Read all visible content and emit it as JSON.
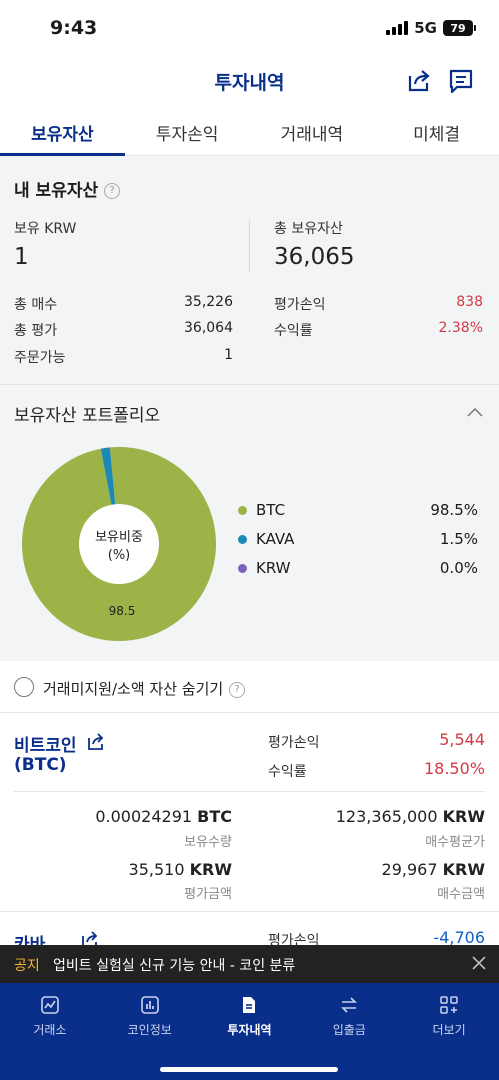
{
  "status": {
    "time": "9:43",
    "network": "5G",
    "battery": "79"
  },
  "header": {
    "title": "투자내역"
  },
  "tabs": [
    {
      "label": "보유자산"
    },
    {
      "label": "투자손익"
    },
    {
      "label": "거래내역"
    },
    {
      "label": "미체결"
    }
  ],
  "summary": {
    "title": "내 보유자산",
    "krw_label": "보유 KRW",
    "krw_value": "1",
    "total_label": "총 보유자산",
    "total_value": "36,065",
    "buy_label": "총 매수",
    "buy_value": "35,226",
    "eval_label": "총 평가",
    "eval_value": "36,064",
    "avail_label": "주문가능",
    "avail_value": "1",
    "pl_label": "평가손익",
    "pl_value": "838",
    "rate_label": "수익률",
    "rate_value": "2.38%"
  },
  "portfolio": {
    "title": "보유자산 포트폴리오",
    "center_line1": "보유비중",
    "center_line2": "(%)",
    "slice_label": "98.5"
  },
  "chart_data": {
    "type": "pie",
    "categories": [
      "BTC",
      "KAVA",
      "KRW"
    ],
    "values": [
      98.5,
      1.5,
      0.0
    ],
    "value_labels": [
      "98.5%",
      "1.5%",
      "0.0%"
    ],
    "colors": [
      "#9cb347",
      "#1b89b4",
      "#7b63b7"
    ],
    "title": "보유자산 포트폴리오"
  },
  "hide_small": {
    "label": "거래미지원/소액 자산 숨기기"
  },
  "coins": [
    {
      "name": "비트코인",
      "symbol": "(BTC)",
      "pl_label": "평가손익",
      "pl_value": "5,544",
      "rate_label": "수익률",
      "rate_value": "18.50%",
      "qty_value": "0.00024291",
      "qty_unit": "BTC",
      "qty_label": "보유수량",
      "avg_value": "123,365,000",
      "avg_unit": "KRW",
      "avg_label": "매수평균가",
      "eval_value": "35,510",
      "eval_unit": "KRW",
      "eval_label": "평가금액",
      "buy_value": "29,967",
      "buy_unit": "KRW",
      "buy_label": "매수금액"
    },
    {
      "name": "카바",
      "pl_label": "평가손익",
      "pl_value": "-4,706"
    }
  ],
  "notice": {
    "tag": "공지",
    "text": "업비트 실험실 신규 기능 안내 - 코인 분류"
  },
  "nav": [
    {
      "label": "거래소",
      "icon": "chart-icon"
    },
    {
      "label": "코인정보",
      "icon": "bar-chart-icon"
    },
    {
      "label": "투자내역",
      "icon": "document-icon"
    },
    {
      "label": "입출금",
      "icon": "transfer-icon"
    },
    {
      "label": "더보기",
      "icon": "grid-icon"
    }
  ]
}
